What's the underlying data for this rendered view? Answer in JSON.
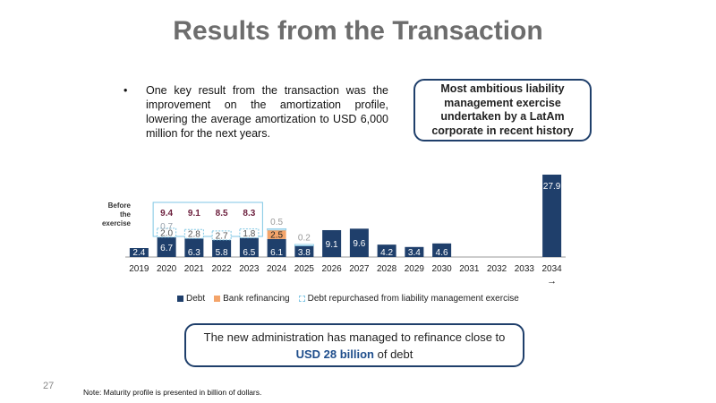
{
  "title": "Results from the Transaction",
  "bullet": {
    "symbol": "•",
    "text": "One key result from the transaction was the improvement on the amortization profile, lowering the average amortization to USD 6,000 million for the next years."
  },
  "callout": "Most ambitious liability management exercise undertaken by a LatAm corporate in recent history",
  "chart_data": {
    "type": "bar",
    "stacked": true,
    "categories": [
      "2019",
      "2020",
      "2021",
      "2022",
      "2023",
      "2024",
      "2025",
      "2026",
      "2027",
      "2028",
      "2029",
      "2030",
      "2031",
      "2032",
      "2033",
      "2034"
    ],
    "last_category_suffix": "→",
    "series": [
      {
        "name": "Debt",
        "color": "#1f3f6b",
        "values": [
          2.4,
          6.7,
          6.3,
          5.8,
          6.5,
          6.1,
          3.8,
          9.1,
          9.6,
          4.2,
          3.4,
          4.6,
          null,
          null,
          null,
          27.9
        ]
      },
      {
        "name": "Bank refinancing",
        "color": "#f4a46a",
        "values": [
          null,
          null,
          null,
          null,
          null,
          2.5,
          null,
          null,
          null,
          null,
          null,
          null,
          null,
          null,
          null,
          null
        ]
      },
      {
        "name": "Debt repurchased from liability management exercise",
        "color": "#ffffff",
        "border": "#7fc6e4",
        "values": [
          null,
          2.0,
          2.8,
          2.7,
          1.8,
          0.5,
          0.2,
          null,
          null,
          null,
          null,
          null,
          null,
          null,
          null,
          null
        ]
      }
    ],
    "before_exercise": {
      "label": "Before the exercise",
      "categories": [
        "2020",
        "2021",
        "2022",
        "2023"
      ],
      "values": [
        9.4,
        9.1,
        8.5,
        8.3
      ]
    },
    "extra_labels": [
      {
        "category": "2020",
        "value": "0.7"
      }
    ],
    "ylim": [
      0,
      28
    ]
  },
  "summary": {
    "line1": "The new administration has managed to refinance close to",
    "highlight": "USD 28 billion",
    "line2_rest": "of debt"
  },
  "page_number": "27",
  "note": "Note: Maturity profile is presented in billion of dollars."
}
